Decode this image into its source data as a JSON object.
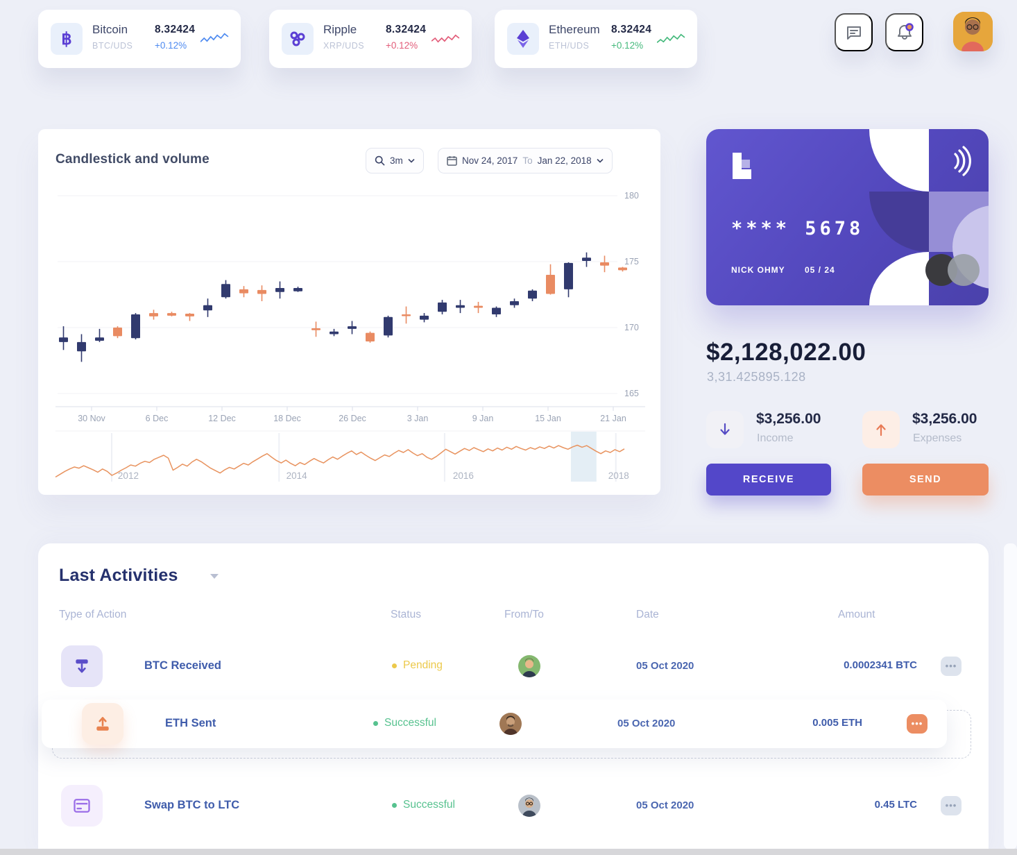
{
  "tickers": [
    {
      "name": "Bitcoin",
      "pair": "BTC/UDS",
      "value": "8.32424",
      "change": "+0.12%",
      "accent": "#4d8af0",
      "icon": "bitcoin-icon",
      "spark": "0,13 5,8 9,12 14,6 18,10 23,4 28,8 33,2 38,6"
    },
    {
      "name": "Ripple",
      "pair": "XRP/UDS",
      "value": "8.32424",
      "change": "+0.12%",
      "accent": "#e25c79",
      "icon": "ripple-icon",
      "spark": "0,12 5,8 9,13 14,8 18,12 23,6 28,10 33,4 38,8"
    },
    {
      "name": "Ethereum",
      "pair": "ETH/UDS",
      "value": "8.32424",
      "change": "+0.12%",
      "accent": "#45b97c",
      "icon": "ethereum-icon",
      "spark": "0,14 5,10 9,13 14,7 18,11 23,5 28,9 33,3 38,7"
    }
  ],
  "chart": {
    "title": "Candlestick and volume",
    "range_label": "3m",
    "date_start": "Nov 24, 2017",
    "to_label": "To",
    "date_end": "Jan 22, 2018"
  },
  "chart_data": {
    "type": "candlestick+volume",
    "title": "Candlestick and volume",
    "y_ticks": [
      180,
      175,
      170,
      165
    ],
    "ylim": [
      163.5,
      181
    ],
    "x_ticks": [
      "30 Nov",
      "6 Dec",
      "12 Dec",
      "18 Dec",
      "26 Dec",
      "3 Jan",
      "9 Jan",
      "15 Jan",
      "21 Jan"
    ],
    "up_color": "#313a6e",
    "down_color": "#e98b62",
    "candles": [
      [
        168.9,
        170.1,
        168.3,
        169.25
      ],
      [
        168.2,
        169.5,
        167.4,
        168.9
      ],
      [
        169.0,
        169.9,
        168.9,
        169.25
      ],
      [
        170.0,
        170.1,
        169.2,
        169.35
      ],
      [
        169.2,
        171.1,
        169.1,
        171.0
      ],
      [
        171.1,
        171.35,
        170.6,
        170.85
      ],
      [
        171.1,
        171.2,
        170.85,
        170.9
      ],
      [
        171.05,
        171.1,
        170.5,
        170.85
      ],
      [
        171.3,
        172.2,
        170.8,
        171.7
      ],
      [
        172.3,
        173.6,
        172.2,
        173.3
      ],
      [
        172.9,
        173.15,
        172.3,
        172.6
      ],
      [
        172.85,
        173.2,
        172.0,
        172.55
      ],
      [
        172.7,
        173.5,
        172.2,
        173.0
      ],
      [
        172.75,
        173.1,
        172.7,
        173.0
      ],
      [
        169.95,
        170.45,
        169.3,
        169.8
      ],
      [
        169.5,
        169.9,
        169.35,
        169.7
      ],
      [
        169.9,
        170.5,
        169.5,
        170.1
      ],
      [
        169.6,
        169.7,
        168.85,
        168.95
      ],
      [
        169.4,
        170.9,
        169.25,
        170.8
      ],
      [
        171.0,
        171.6,
        170.3,
        170.9
      ],
      [
        170.6,
        171.1,
        170.4,
        170.9
      ],
      [
        171.2,
        172.1,
        171.0,
        171.9
      ],
      [
        171.5,
        172.1,
        171.1,
        171.7
      ],
      [
        171.65,
        171.95,
        171.1,
        171.5
      ],
      [
        171.0,
        171.6,
        170.8,
        171.5
      ],
      [
        171.7,
        172.2,
        171.5,
        172.0
      ],
      [
        172.2,
        172.9,
        172.0,
        172.8
      ],
      [
        174.0,
        174.8,
        172.5,
        172.55
      ],
      [
        172.9,
        174.95,
        172.3,
        174.9
      ],
      [
        175.05,
        175.7,
        174.6,
        175.3
      ],
      [
        174.95,
        175.45,
        174.2,
        174.7
      ],
      [
        174.55,
        174.6,
        174.25,
        174.35
      ]
    ],
    "volume": {
      "color": "#e8935f",
      "x_ticks": [
        "2012",
        "2014",
        "2016",
        "2018"
      ],
      "selection": [
        0.906,
        0.951
      ],
      "values": [
        0.08,
        0.15,
        0.22,
        0.28,
        0.33,
        0.3,
        0.36,
        0.31,
        0.26,
        0.2,
        0.28,
        0.22,
        0.12,
        0.18,
        0.25,
        0.31,
        0.38,
        0.35,
        0.42,
        0.47,
        0.44,
        0.52,
        0.57,
        0.62,
        0.55,
        0.25,
        0.32,
        0.4,
        0.35,
        0.45,
        0.52,
        0.46,
        0.38,
        0.3,
        0.24,
        0.18,
        0.26,
        0.32,
        0.28,
        0.35,
        0.42,
        0.38,
        0.46,
        0.53,
        0.6,
        0.66,
        0.57,
        0.49,
        0.43,
        0.5,
        0.42,
        0.36,
        0.44,
        0.39,
        0.47,
        0.54,
        0.48,
        0.43,
        0.51,
        0.58,
        0.52,
        0.6,
        0.67,
        0.73,
        0.64,
        0.7,
        0.62,
        0.55,
        0.49,
        0.56,
        0.63,
        0.59,
        0.67,
        0.74,
        0.69,
        0.76,
        0.68,
        0.61,
        0.66,
        0.57,
        0.52,
        0.59,
        0.68,
        0.77,
        0.71,
        0.65,
        0.72,
        0.79,
        0.74,
        0.81,
        0.76,
        0.71,
        0.78,
        0.73,
        0.8,
        0.75,
        0.82,
        0.77,
        0.84,
        0.79,
        0.75,
        0.81,
        0.77,
        0.83,
        0.79,
        0.85,
        0.8,
        0.86,
        0.81,
        0.77,
        0.83,
        0.87,
        0.82,
        0.86,
        0.79,
        0.72,
        0.66,
        0.73,
        0.69,
        0.76,
        0.71,
        0.78
      ]
    }
  },
  "wallet": {
    "card_number": "****  5678",
    "holder": "NICK OHMY",
    "expiry": "05 / 24",
    "balance": "$2,128,022.00",
    "balance_sub": "3,31.425895.128",
    "income_amount": "$3,256.00",
    "income_label": "Income",
    "expenses_amount": "$3,256.00",
    "expenses_label": "Expenses",
    "receive_label": "RECEIVE",
    "send_label": "SEND"
  },
  "activities": {
    "title": "Last Activities",
    "columns": [
      "Type of Action",
      "Status",
      "From/To",
      "Date",
      "Amount"
    ],
    "rows": [
      {
        "action": "BTC Received",
        "status": "Pending",
        "status_color": "#ecc94b",
        "date": "05 Oct 2020",
        "amount": "0.0002341 BTC"
      },
      {
        "action": "ETH Sent",
        "status": "Successful",
        "status_color": "#57c28f",
        "date": "05 Oct 2020",
        "amount": "0.005 ETH"
      },
      {
        "action": "Swap BTC to LTC",
        "status": "Successful",
        "status_color": "#57c28f",
        "date": "05 Oct 2020",
        "amount": "0.45 LTC"
      }
    ],
    "menu_label": "•••"
  },
  "colors": {
    "purple": "#5b3fd4",
    "orange": "#ec8d62",
    "green": "#57c28f",
    "yellow": "#ecc94b"
  }
}
